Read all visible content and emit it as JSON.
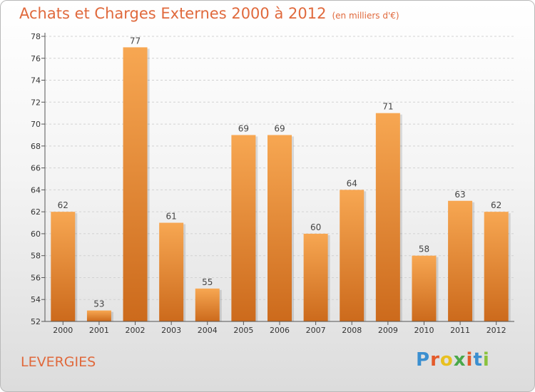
{
  "header": {
    "title": "Achats et Charges Externes 2000 à 2012",
    "subtitle": "(en milliers d'€)"
  },
  "footer": {
    "location": "LEVERGIES",
    "brand": "Proxiti",
    "brand_colors": [
      "#3b8fd0",
      "#e45a2a",
      "#e8c020",
      "#4aa84a",
      "#e45a2a",
      "#3b8fd0",
      "#8ac23e"
    ]
  },
  "chart_data": {
    "type": "bar",
    "categories": [
      "2000",
      "2001",
      "2002",
      "2003",
      "2004",
      "2005",
      "2006",
      "2007",
      "2008",
      "2009",
      "2010",
      "2011",
      "2012"
    ],
    "values": [
      62,
      53,
      77,
      61,
      55,
      69,
      69,
      60,
      64,
      71,
      58,
      63,
      62
    ],
    "ylim": [
      52,
      78
    ],
    "yticks": [
      52,
      54,
      56,
      58,
      60,
      62,
      64,
      66,
      68,
      70,
      72,
      74,
      76,
      78
    ],
    "grid": "horizontal dashed",
    "bar_color_top": "#f7a752",
    "bar_color_bottom": "#cc6a1c"
  }
}
